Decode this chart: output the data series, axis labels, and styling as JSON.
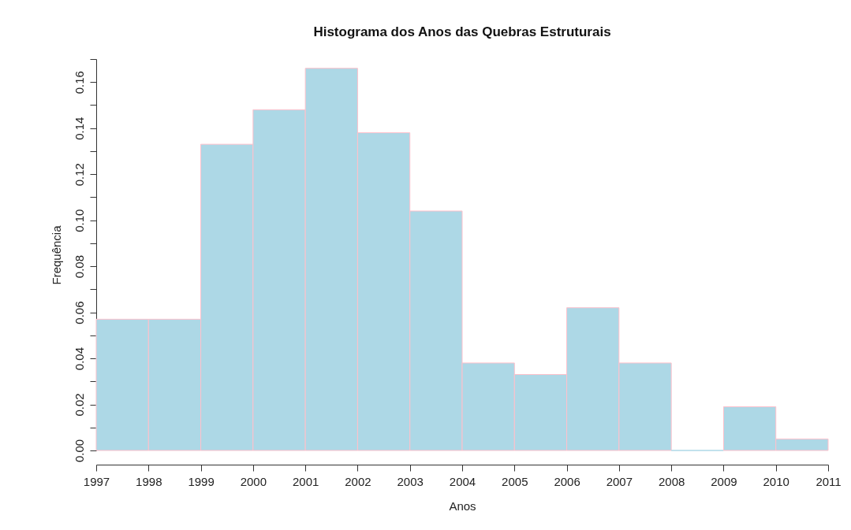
{
  "chart_data": {
    "type": "histogram",
    "title": "Histograma dos Anos das Quebras Estruturais",
    "xlabel": "Anos",
    "ylabel": "Frequência",
    "bins": [
      1997,
      1998,
      1999,
      2000,
      2001,
      2002,
      2003,
      2004,
      2005,
      2006,
      2007,
      2008,
      2009,
      2010,
      2011
    ],
    "values": [
      0.057,
      0.057,
      0.133,
      0.148,
      0.166,
      0.138,
      0.104,
      0.038,
      0.033,
      0.062,
      0.038,
      0.0,
      0.019,
      0.005
    ],
    "color": "#add8e6",
    "xlim": [
      1997,
      2011
    ],
    "xticks": [
      1997,
      1998,
      1999,
      2000,
      2001,
      2002,
      2003,
      2004,
      2005,
      2006,
      2007,
      2008,
      2009,
      2010,
      2011
    ],
    "ylim": [
      0,
      0.17
    ],
    "yticks": [
      {
        "value": 0,
        "label": "0.00"
      },
      {
        "value": 0.01,
        "label": null
      },
      {
        "value": 0.02,
        "label": "0.02"
      },
      {
        "value": 0.03,
        "label": null
      },
      {
        "value": 0.04,
        "label": "0.04"
      },
      {
        "value": 0.05,
        "label": null
      },
      {
        "value": 0.06,
        "label": "0.06"
      },
      {
        "value": 0.07,
        "label": null
      },
      {
        "value": 0.08,
        "label": "0.08"
      },
      {
        "value": 0.09,
        "label": null
      },
      {
        "value": 0.1,
        "label": "0.10"
      },
      {
        "value": 0.11,
        "label": null
      },
      {
        "value": 0.12,
        "label": "0.12"
      },
      {
        "value": 0.13,
        "label": null
      },
      {
        "value": 0.14,
        "label": "0.14"
      },
      {
        "value": 0.15,
        "label": null
      },
      {
        "value": 0.16,
        "label": "0.16"
      },
      {
        "value": 0.17,
        "label": null
      }
    ],
    "grid": false,
    "legend": false
  }
}
